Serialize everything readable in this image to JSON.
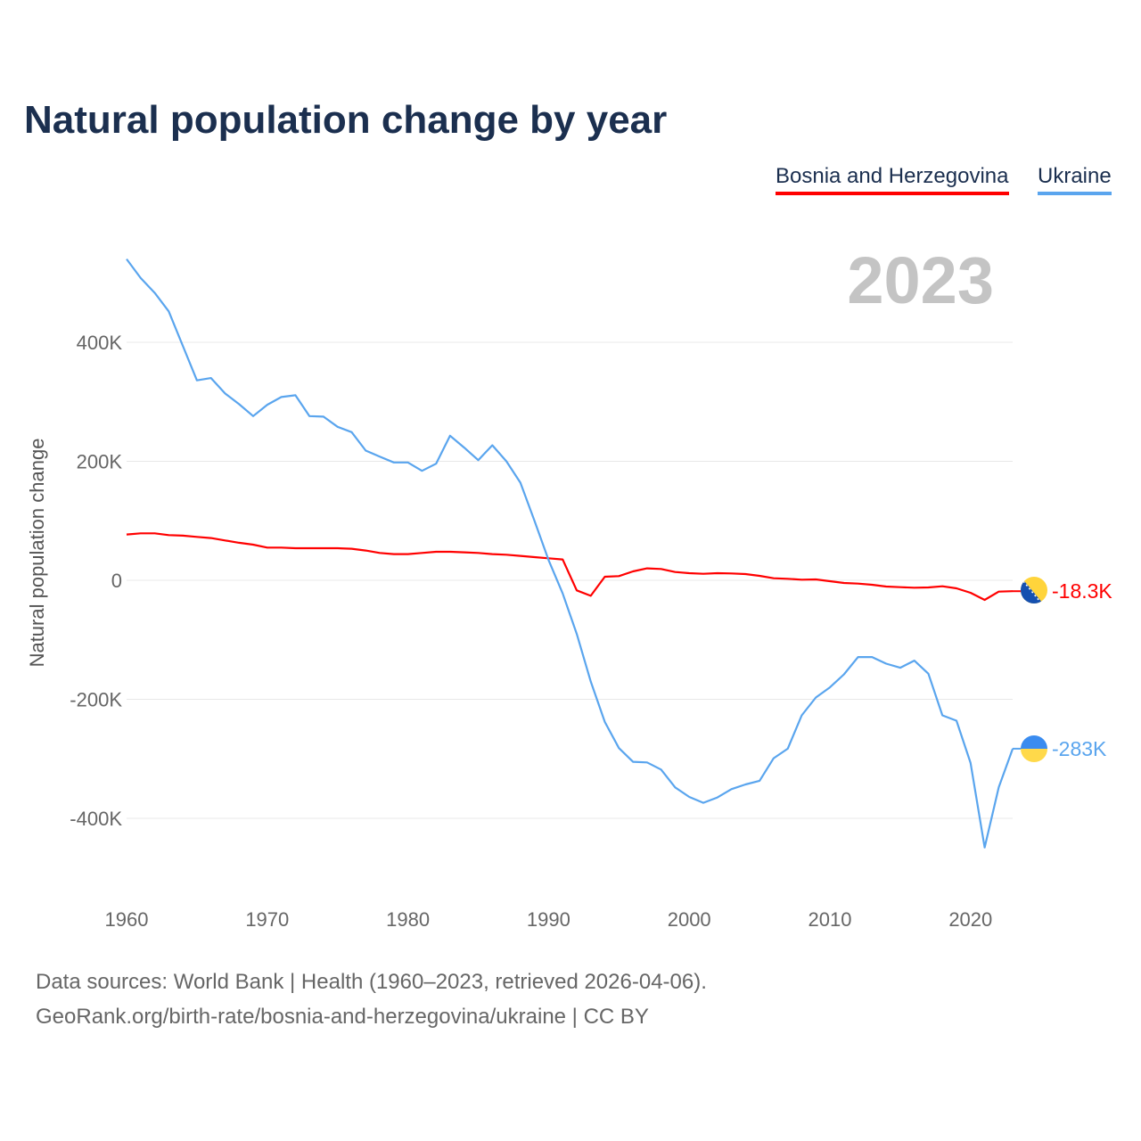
{
  "chart_data": {
    "type": "line",
    "title": "Natural population change by year",
    "ylabel": "Natural population change",
    "xlabel": "",
    "xlim": [
      1960,
      2023
    ],
    "ylim": [
      -500000,
      550000
    ],
    "x_ticks": [
      1960,
      1970,
      1980,
      1990,
      2000,
      2010,
      2020
    ],
    "y_ticks": [
      {
        "v": 400000,
        "label": "400K"
      },
      {
        "v": 200000,
        "label": "200K"
      },
      {
        "v": 0,
        "label": "0"
      },
      {
        "v": -200000,
        "label": "-200K"
      },
      {
        "v": -400000,
        "label": "-400K"
      }
    ],
    "grid": true,
    "current_year": "2023",
    "x": [
      1960,
      1961,
      1962,
      1963,
      1964,
      1965,
      1966,
      1967,
      1968,
      1969,
      1970,
      1971,
      1972,
      1973,
      1974,
      1975,
      1976,
      1977,
      1978,
      1979,
      1980,
      1981,
      1982,
      1983,
      1984,
      1985,
      1986,
      1987,
      1988,
      1989,
      1990,
      1991,
      1992,
      1993,
      1994,
      1995,
      1996,
      1997,
      1998,
      1999,
      2000,
      2001,
      2002,
      2003,
      2004,
      2005,
      2006,
      2007,
      2008,
      2009,
      2010,
      2011,
      2012,
      2013,
      2014,
      2015,
      2016,
      2017,
      2018,
      2019,
      2020,
      2021,
      2022,
      2023
    ],
    "series": [
      {
        "name": "Bosnia and Herzegovina",
        "color": "#ff0000",
        "end_label": "-18.3K",
        "values": [
          77000,
          79000,
          79000,
          76000,
          75000,
          73000,
          71000,
          67000,
          63000,
          60000,
          55000,
          55000,
          54000,
          54000,
          54000,
          54000,
          53000,
          50000,
          46000,
          44000,
          44000,
          46000,
          48000,
          48000,
          47000,
          46000,
          44000,
          43000,
          41000,
          39000,
          37000,
          35000,
          -17000,
          -26000,
          6000,
          7000,
          15000,
          20000,
          19000,
          14000,
          12000,
          11000,
          12000,
          11500,
          10500,
          7500,
          3500,
          2500,
          1000,
          1500,
          -1500,
          -4500,
          -5500,
          -7500,
          -10500,
          -11500,
          -12500,
          -12000,
          -10000,
          -13500,
          -21000,
          -33000,
          -19000,
          -18300
        ]
      },
      {
        "name": "Ukraine",
        "color": "#5aa5ee",
        "end_label": "-283K",
        "values": [
          540000,
          508000,
          483000,
          452000,
          394000,
          336000,
          340000,
          314000,
          296000,
          276000,
          295000,
          308000,
          311000,
          276000,
          275000,
          258000,
          249000,
          218000,
          208000,
          198000,
          198000,
          184000,
          196000,
          243000,
          223000,
          202000,
          227000,
          200000,
          164000,
          100000,
          34000,
          -22000,
          -90000,
          -170000,
          -238000,
          -282000,
          -305000,
          -306000,
          -318000,
          -348000,
          -364000,
          -374000,
          -365000,
          -351000,
          -343000,
          -337000,
          -299000,
          -283000,
          -227000,
          -197000,
          -180000,
          -158000,
          -129000,
          -129000,
          -140000,
          -147000,
          -135000,
          -157000,
          -227000,
          -236000,
          -307000,
          -449000,
          -348000,
          -283000
        ]
      }
    ]
  },
  "legend": [
    "Bosnia and Herzegovina",
    "Ukraine"
  ],
  "footer": {
    "line1": "Data sources: World Bank | Health (1960–2023, retrieved 2026-04-06).",
    "line2": "GeoRank.org/birth-rate/bosnia-and-herzegovina/ukraine | CC BY"
  }
}
